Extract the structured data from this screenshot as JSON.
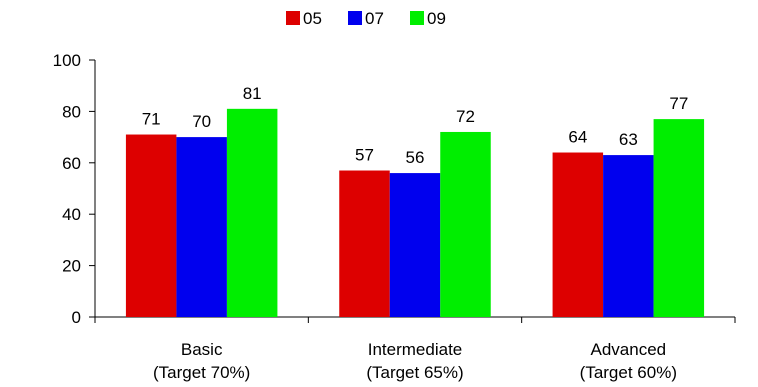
{
  "chart_data": {
    "type": "bar",
    "categories": [
      [
        "Basic",
        "(Target 70%)"
      ],
      [
        "Intermediate",
        "(Target 65%)"
      ],
      [
        "Advanced",
        "(Target 60%)"
      ]
    ],
    "series": [
      {
        "name": "05",
        "color": "#dd0000",
        "values": [
          71,
          57,
          64
        ]
      },
      {
        "name": "07",
        "color": "#0000ee",
        "values": [
          70,
          56,
          63
        ]
      },
      {
        "name": "09",
        "color": "#00ee00",
        "values": [
          81,
          72,
          77
        ]
      }
    ],
    "ylim": [
      0,
      100
    ],
    "yticks": [
      0,
      20,
      40,
      60,
      80,
      100
    ],
    "legend": "top-center",
    "grid": false,
    "data_labels": true
  }
}
